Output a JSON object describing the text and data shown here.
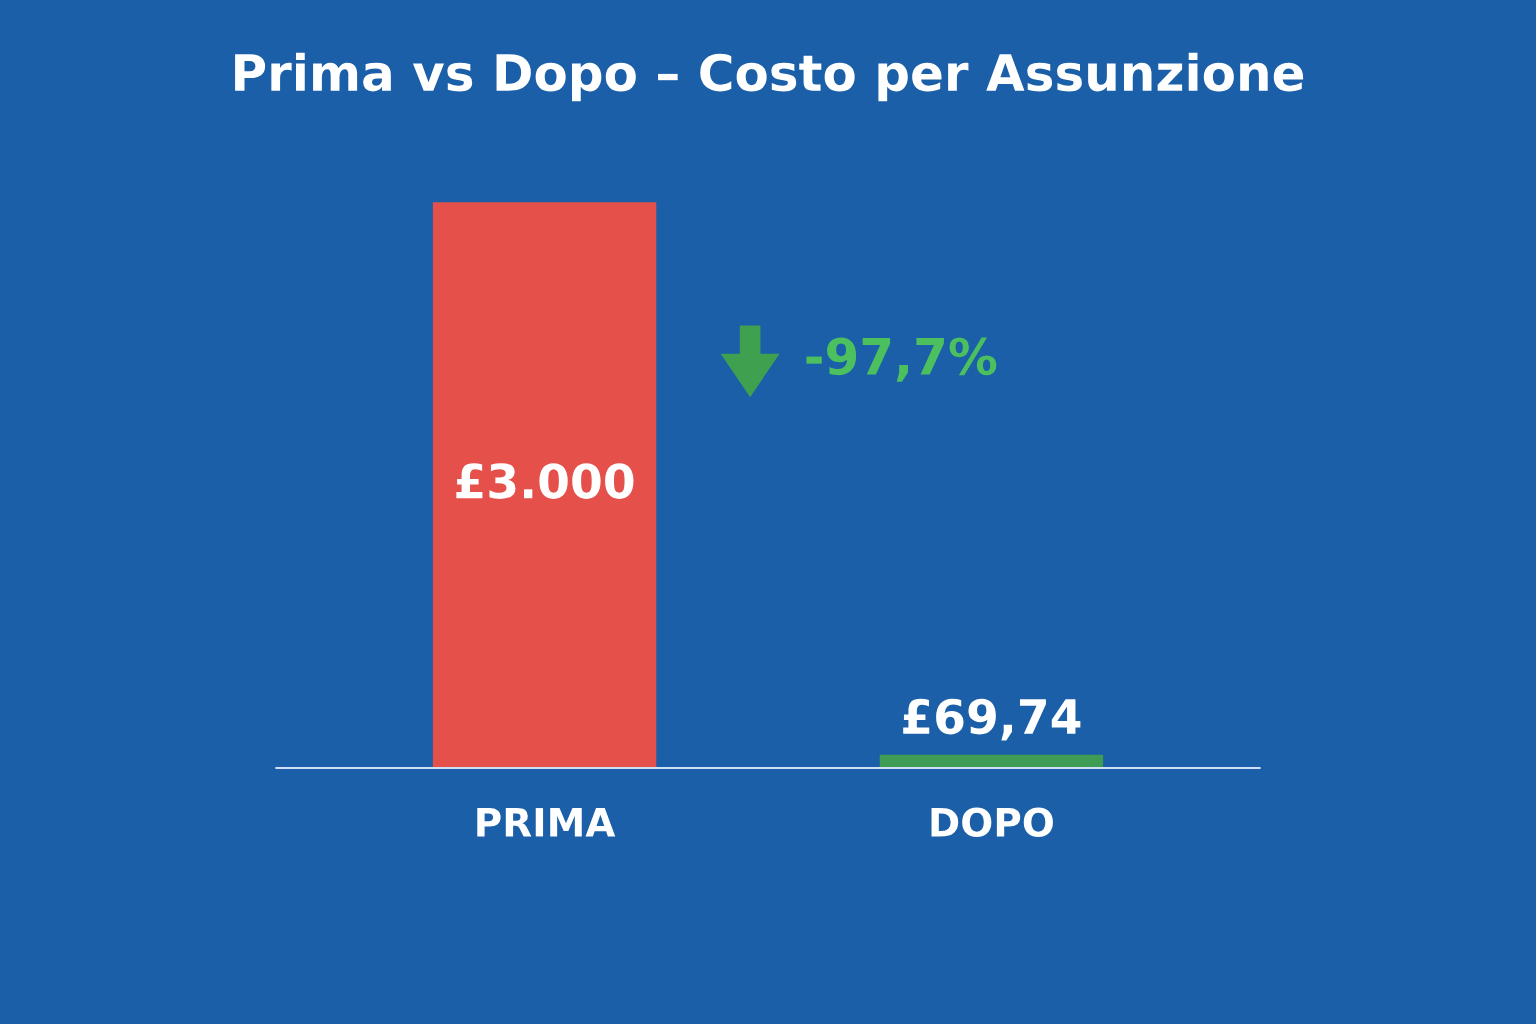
{
  "chart_data": {
    "type": "bar",
    "title": "Prima vs Dopo – Costo per Assunzione",
    "categories": [
      "PRIMA",
      "DOPO"
    ],
    "values": [
      3000,
      69.74
    ],
    "colors": [
      "#e5514a",
      "#3f9c55"
    ],
    "value_labels": [
      "£3.000",
      "£69,74"
    ],
    "annotations": [
      "-97,7%"
    ]
  }
}
